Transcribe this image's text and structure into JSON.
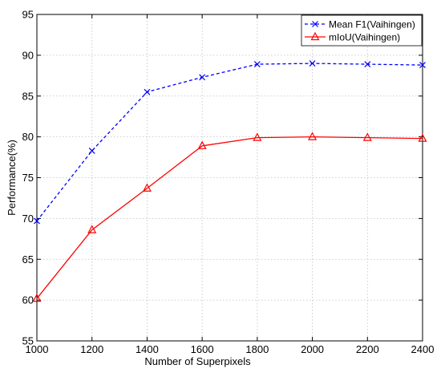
{
  "chart_data": {
    "type": "line",
    "title": "",
    "xlabel": "Number of Superpixels",
    "ylabel": "Performance(%)",
    "x": [
      1000,
      1200,
      1400,
      1600,
      1800,
      2000,
      2200,
      2400
    ],
    "xlim": [
      1000,
      2400
    ],
    "ylim": [
      55,
      95
    ],
    "xticks": [
      1000,
      1200,
      1400,
      1600,
      1800,
      2000,
      2200,
      2400
    ],
    "yticks": [
      55,
      60,
      65,
      70,
      75,
      80,
      85,
      90,
      95
    ],
    "grid": true,
    "legend_position": "top-right",
    "series": [
      {
        "name": "Mean F1(Vaihingen)",
        "values": [
          69.7,
          78.3,
          85.5,
          87.3,
          88.9,
          89.0,
          88.9,
          88.8
        ],
        "color": "#0000ff",
        "line_style": "dashed",
        "marker": "x"
      },
      {
        "name": "mIoU(Vaihingen)",
        "values": [
          60.2,
          68.6,
          73.7,
          78.9,
          79.9,
          80.0,
          79.9,
          79.8
        ],
        "color": "#ff0000",
        "line_style": "solid",
        "marker": "triangle"
      }
    ]
  }
}
